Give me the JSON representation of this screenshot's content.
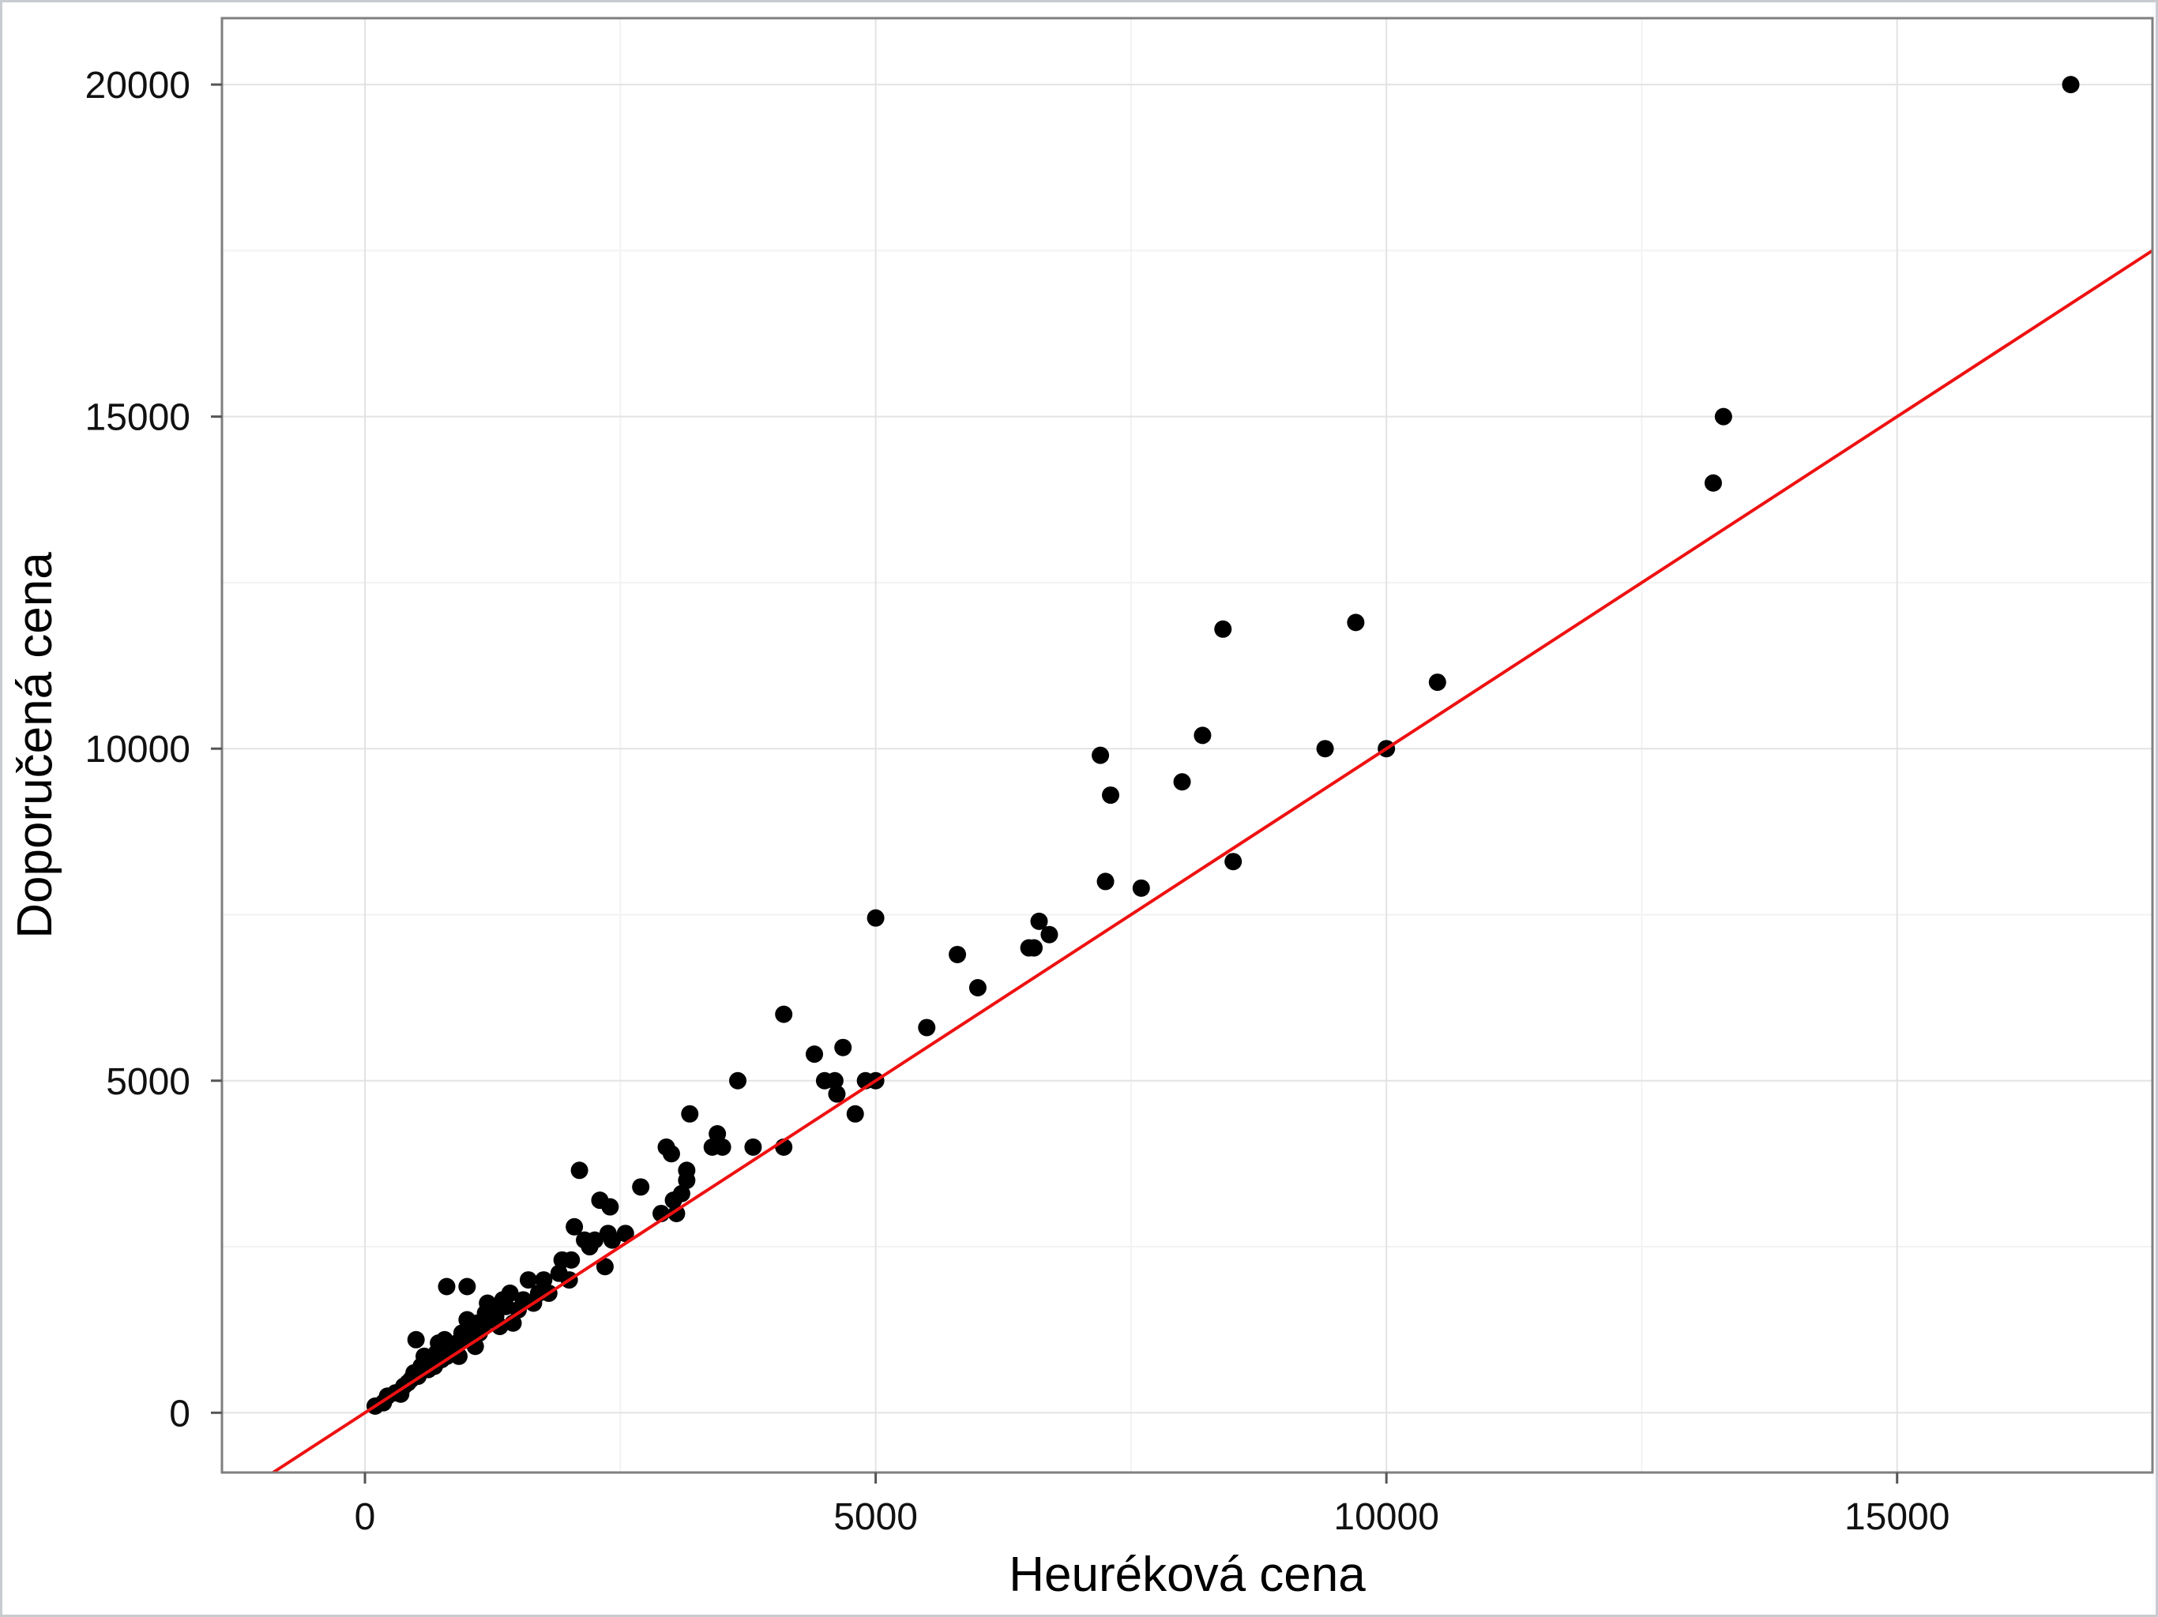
{
  "chart_data": {
    "type": "scatter",
    "title": "",
    "xlabel": "Heuréková cena",
    "ylabel": "Doporučená cena",
    "xlim": [
      -1400,
      17500
    ],
    "ylim": [
      -900,
      21000
    ],
    "x_ticks": [
      0,
      5000,
      10000,
      15000
    ],
    "y_ticks": [
      0,
      5000,
      10000,
      15000,
      20000
    ],
    "x_tick_labels": [
      "0",
      "5000",
      "10000",
      "15000"
    ],
    "y_tick_labels": [
      "0",
      "5000",
      "10000",
      "15000",
      "20000"
    ],
    "grid": true,
    "legend": "none",
    "point_color": "#000000",
    "line_color": "#ee1111",
    "regression_line": {
      "slope": 1.0,
      "intercept": 0
    },
    "points": [
      [
        100,
        100
      ],
      [
        180,
        150
      ],
      [
        220,
        250
      ],
      [
        300,
        300
      ],
      [
        350,
        280
      ],
      [
        380,
        400
      ],
      [
        420,
        450
      ],
      [
        450,
        500
      ],
      [
        480,
        600
      ],
      [
        500,
        1100
      ],
      [
        520,
        550
      ],
      [
        550,
        700
      ],
      [
        580,
        850
      ],
      [
        600,
        800
      ],
      [
        620,
        650
      ],
      [
        650,
        750
      ],
      [
        680,
        700
      ],
      [
        700,
        900
      ],
      [
        720,
        1050
      ],
      [
        750,
        800
      ],
      [
        780,
        1100
      ],
      [
        800,
        850
      ],
      [
        800,
        1900
      ],
      [
        830,
        950
      ],
      [
        850,
        1000
      ],
      [
        880,
        900
      ],
      [
        900,
        1050
      ],
      [
        920,
        850
      ],
      [
        950,
        1200
      ],
      [
        980,
        1100
      ],
      [
        1000,
        1400
      ],
      [
        1000,
        1900
      ],
      [
        1020,
        1150
      ],
      [
        1050,
        1250
      ],
      [
        1080,
        1000
      ],
      [
        1100,
        1350
      ],
      [
        1120,
        1200
      ],
      [
        1150,
        1300
      ],
      [
        1180,
        1500
      ],
      [
        1200,
        1650
      ],
      [
        1220,
        1400
      ],
      [
        1250,
        1550
      ],
      [
        1280,
        1450
      ],
      [
        1300,
        1600
      ],
      [
        1320,
        1300
      ],
      [
        1350,
        1700
      ],
      [
        1380,
        1600
      ],
      [
        1420,
        1800
      ],
      [
        1450,
        1350
      ],
      [
        1500,
        1550
      ],
      [
        1550,
        1700
      ],
      [
        1600,
        2000
      ],
      [
        1650,
        1650
      ],
      [
        1700,
        1800
      ],
      [
        1750,
        2000
      ],
      [
        1800,
        1800
      ],
      [
        1900,
        2100
      ],
      [
        1930,
        2300
      ],
      [
        2000,
        2000
      ],
      [
        2020,
        2300
      ],
      [
        2050,
        2800
      ],
      [
        2100,
        3650
      ],
      [
        2150,
        2600
      ],
      [
        2200,
        2500
      ],
      [
        2250,
        2600
      ],
      [
        2300,
        3200
      ],
      [
        2350,
        2200
      ],
      [
        2380,
        2700
      ],
      [
        2400,
        3100
      ],
      [
        2420,
        2600
      ],
      [
        2550,
        2700
      ],
      [
        2700,
        3400
      ],
      [
        2900,
        3000
      ],
      [
        2950,
        4000
      ],
      [
        3000,
        3900
      ],
      [
        3020,
        3200
      ],
      [
        3050,
        3000
      ],
      [
        3100,
        3300
      ],
      [
        3150,
        3500
      ],
      [
        3150,
        3650
      ],
      [
        3180,
        4500
      ],
      [
        3400,
        4000
      ],
      [
        3450,
        4200
      ],
      [
        3500,
        4000
      ],
      [
        3650,
        5000
      ],
      [
        3800,
        4000
      ],
      [
        4100,
        4000
      ],
      [
        4100,
        6000
      ],
      [
        4400,
        5400
      ],
      [
        4500,
        5000
      ],
      [
        4600,
        5000
      ],
      [
        4620,
        4800
      ],
      [
        4680,
        5500
      ],
      [
        4800,
        4500
      ],
      [
        4900,
        5000
      ],
      [
        5000,
        5000
      ],
      [
        5000,
        7450
      ],
      [
        5500,
        5800
      ],
      [
        5800,
        6900
      ],
      [
        6000,
        6400
      ],
      [
        6500,
        7000
      ],
      [
        6550,
        7000
      ],
      [
        6600,
        7400
      ],
      [
        6700,
        7200
      ],
      [
        7200,
        9900
      ],
      [
        7250,
        8000
      ],
      [
        7300,
        9300
      ],
      [
        7600,
        7900
      ],
      [
        8000,
        9500
      ],
      [
        8200,
        10200
      ],
      [
        8400,
        11800
      ],
      [
        8500,
        8300
      ],
      [
        9400,
        10000
      ],
      [
        9700,
        11900
      ],
      [
        10000,
        10000
      ],
      [
        10500,
        11000
      ],
      [
        13200,
        14000
      ],
      [
        13300,
        15000
      ],
      [
        16700,
        20000
      ]
    ]
  }
}
